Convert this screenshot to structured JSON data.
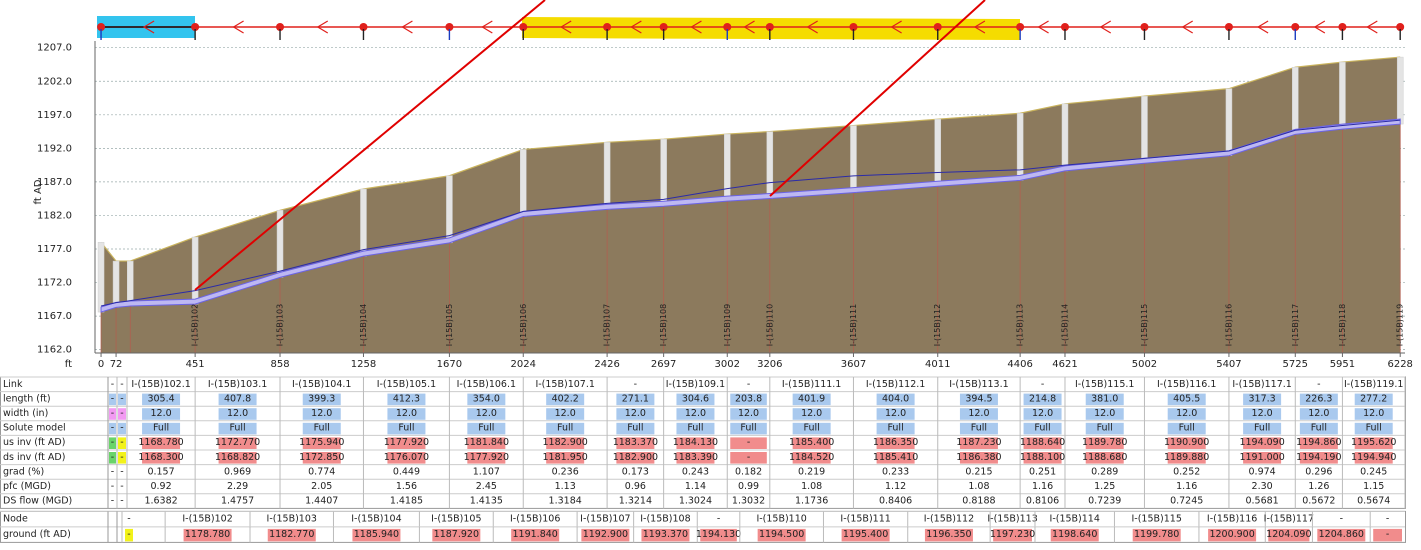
{
  "chart_data": {
    "type": "profile",
    "ylabel": "ft AD",
    "xlabel": "ft",
    "xlim": [
      -29,
      6251
    ],
    "ylim": [
      1161.5,
      1208
    ],
    "xticks": [
      0,
      72,
      451,
      858,
      1258,
      1670,
      2024,
      2426,
      2697,
      3002,
      3206,
      3607,
      4011,
      4406,
      4621,
      5002,
      5407,
      5725,
      5951,
      6228
    ],
    "yticks": [
      {
        "value": 1162,
        "label": "1162.0"
      },
      {
        "value": 1167,
        "label": "1167.0"
      },
      {
        "value": 1172,
        "label": "1172.0"
      },
      {
        "value": 1177,
        "label": "1177.0"
      },
      {
        "value": 1182,
        "label": "1182.0"
      },
      {
        "value": 1187,
        "label": "1187.0"
      },
      {
        "value": 1192,
        "label": "1192.0"
      },
      {
        "value": 1197,
        "label": "1197.0"
      },
      {
        "value": 1202,
        "label": "1202.0"
      },
      {
        "value": 1207,
        "label": "1207.0"
      }
    ],
    "grid": true,
    "x": [
      0,
      72,
      140,
      451,
      858,
      1258,
      1670,
      2024,
      2426,
      2697,
      3002,
      3206,
      3607,
      4011,
      4406,
      4621,
      5002,
      5407,
      5725,
      5951,
      6228
    ],
    "series": [
      {
        "color": "#c9b35c",
        "fill": "#8c7a5d",
        "values": [
          1178,
          1175.2,
          1175.2,
          1178.78,
          1182.77,
          1185.94,
          1187.92,
          1191.84,
          1192.9,
          1193.37,
          1194.13,
          1194.5,
          1195.4,
          1196.35,
          1197.23,
          1198.64,
          1199.78,
          1200.9,
          1204.09,
          1204.86,
          1205.6
        ]
      },
      {
        "color": "#6b63e6",
        "fill": "#bdb8f2",
        "values": [
          1167.6,
          1168.3,
          1168.5,
          1168.78,
          1172.77,
          1175.94,
          1177.92,
          1181.84,
          1182.9,
          1183.37,
          1184.13,
          1184.52,
          1185.4,
          1186.35,
          1187.23,
          1188.64,
          1189.78,
          1190.9,
          1194.09,
          1194.86,
          1195.62
        ]
      },
      {
        "color": "#2b2ba8",
        "values": [
          1168.5,
          1169,
          1169.3,
          1170.8,
          1173.7,
          1176.9,
          1179,
          1182.6,
          1183.8,
          1184.4,
          1186,
          1186.9,
          1187.9,
          1188.4,
          1188.8,
          1189.5,
          1190.5,
          1191.6,
          1194.7,
          1195.4,
          1196.2
        ]
      }
    ],
    "node_x": [
      451,
      858,
      1258,
      1670,
      2024,
      2426,
      2697,
      3002,
      3206,
      3607,
      4011,
      4406,
      4621,
      5002,
      5407,
      5725,
      5951,
      6228
    ],
    "node_labels": [
      "I-(15B)102",
      "I-(15B)103",
      "I-(15B)104",
      "I-(15B)105",
      "I-(15B)106",
      "I-(15B)107",
      "I-(15B)108",
      "I-(15B)109",
      "I-(15B)110",
      "I-(15B)111",
      "I-(15B)112",
      "I-(15B)113",
      "I-(15B)114",
      "I-(15B)115",
      "I-(15B)116",
      "I-(15B)117",
      "I-(15B)118",
      "I-(15B)119"
    ]
  },
  "table": {
    "link_rows": [
      {
        "label": "Link",
        "cells": [
          "-",
          "-",
          "I-(15B)102.1",
          "I-(15B)103.1",
          "I-(15B)104.1",
          "I-(15B)105.1",
          "I-(15B)106.1",
          "I-(15B)107.1",
          "-",
          "I-(15B)109.1",
          "-",
          "I-(15B)111.1",
          "I-(15B)112.1",
          "I-(15B)113.1",
          "-",
          "I-(15B)115.1",
          "I-(15B)116.1",
          "I-(15B)117.1",
          "-",
          "I-(15B)119.1"
        ]
      },
      {
        "label": "length (ft)",
        "cells": [
          "-",
          "-",
          "305.4",
          "407.8",
          "399.3",
          "412.3",
          "354.0",
          "402.2",
          "271.1",
          "304.6",
          "203.8",
          "401.9",
          "404.0",
          "394.5",
          "214.8",
          "381.0",
          "405.5",
          "317.3",
          "226.3",
          "277.2"
        ]
      },
      {
        "label": "width (in)",
        "cells": [
          "-",
          "-",
          "12.0",
          "12.0",
          "12.0",
          "12.0",
          "12.0",
          "12.0",
          "12.0",
          "12.0",
          "12.0",
          "12.0",
          "12.0",
          "12.0",
          "12.0",
          "12.0",
          "12.0",
          "12.0",
          "12.0",
          "12.0"
        ]
      },
      {
        "label": "Solute model",
        "cells": [
          "-",
          "-",
          "Full",
          "Full",
          "Full",
          "Full",
          "Full",
          "Full",
          "Full",
          "Full",
          "Full",
          "Full",
          "Full",
          "Full",
          "Full",
          "Full",
          "Full",
          "Full",
          "Full",
          "Full"
        ]
      },
      {
        "label": "us inv (ft AD)",
        "cells": [
          "-",
          "-",
          "1168.780",
          "1172.770",
          "1175.940",
          "1177.920",
          "1181.840",
          "1182.900",
          "1183.370",
          "1184.130",
          "-",
          "1185.400",
          "1186.350",
          "1187.230",
          "1188.640",
          "1189.780",
          "1190.900",
          "1194.090",
          "1194.860",
          "1195.620"
        ]
      },
      {
        "label": "ds inv (ft AD)",
        "cells": [
          "-",
          "-",
          "1168.300",
          "1168.820",
          "1172.850",
          "1176.070",
          "1177.920",
          "1181.950",
          "1182.900",
          "1183.390",
          "-",
          "1184.520",
          "1185.410",
          "1186.380",
          "1188.100",
          "1188.680",
          "1189.880",
          "1191.000",
          "1194.190",
          "1194.940"
        ]
      },
      {
        "label": "grad (%)",
        "cells": [
          "-",
          "-",
          "0.157",
          "0.969",
          "0.774",
          "0.449",
          "1.107",
          "0.236",
          "0.173",
          "0.243",
          "0.182",
          "0.219",
          "0.233",
          "0.215",
          "0.251",
          "0.289",
          "0.252",
          "0.974",
          "0.296",
          "0.245"
        ]
      },
      {
        "label": "pfc (MGD)",
        "cells": [
          "-",
          "-",
          "0.92",
          "2.29",
          "2.05",
          "1.56",
          "2.45",
          "1.13",
          "0.96",
          "1.14",
          "0.99",
          "1.08",
          "1.12",
          "1.08",
          "1.16",
          "1.25",
          "1.16",
          "2.30",
          "1.26",
          "1.15"
        ]
      },
      {
        "label": "DS flow (MGD)",
        "cells": [
          "-",
          "-",
          "1.6382",
          "1.4757",
          "1.4407",
          "1.4185",
          "1.4135",
          "1.3184",
          "1.3214",
          "1.3024",
          "1.3032",
          "1.1736",
          "0.8406",
          "0.8188",
          "0.8106",
          "0.7239",
          "0.7245",
          "0.5681",
          "0.5672",
          "0.5674"
        ]
      }
    ],
    "node_rows": [
      {
        "label": "Node",
        "cells": [
          "-",
          "I-(15B)102",
          "I-(15B)103",
          "I-(15B)104",
          "I-(15B)105",
          "I-(15B)106",
          "I-(15B)107",
          "I-(15B)108",
          "-",
          "I-(15B)110",
          "I-(15B)111",
          "I-(15B)112",
          "I-(15B)113",
          "I-(15B)114",
          "I-(15B)115",
          "I-(15B)116",
          "I-(15B)117",
          "-",
          "-"
        ]
      },
      {
        "label": "ground (ft AD)",
        "cells": [
          "-",
          "1178.780",
          "1182.770",
          "1185.940",
          "1187.920",
          "1191.840",
          "1192.900",
          "1193.370",
          "1194.130",
          "1194.500",
          "1195.400",
          "1196.350",
          "1197.230",
          "1198.640",
          "1199.780",
          "1200.900",
          "1204.090",
          "1204.860",
          "-"
        ]
      }
    ]
  }
}
